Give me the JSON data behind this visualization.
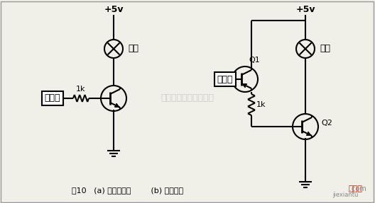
{
  "background_color": "#f0f0e8",
  "line_color": "#000000",
  "title_text": "图10   (a) 基本电路图        (b) 改良电路",
  "watermark": "杭州将睿科技有限公司",
  "supply_voltage": "+5v",
  "resistor_label": "1k",
  "trigger_label": "触发器",
  "load_label": "负载",
  "q1_label": "Q1",
  "q2_label": "Q2",
  "fig_width": 5.28,
  "fig_height": 2.87,
  "dpi": 100
}
